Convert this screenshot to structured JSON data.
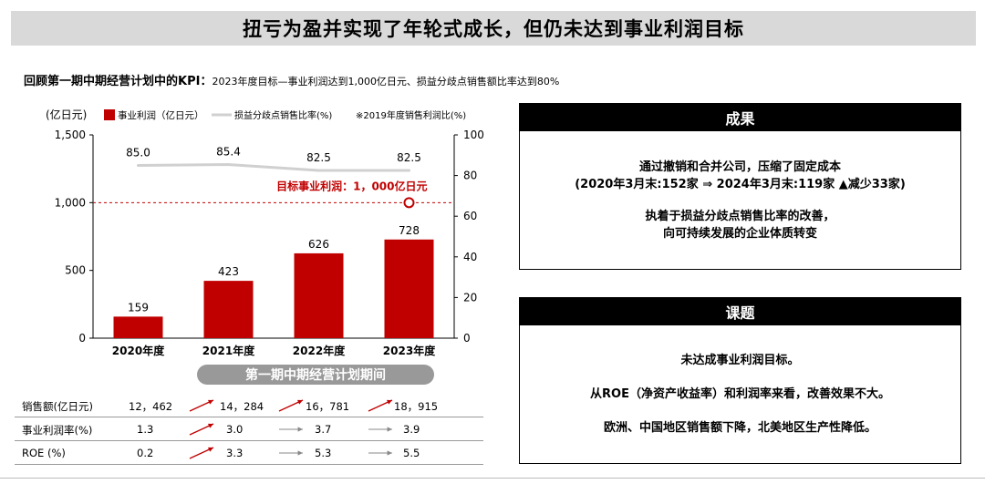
{
  "title": "扭亏为盈并实现了年轮式成长，但仍未达到事业利润目标",
  "subtitle": {
    "bold": "回顾第一期中期经营计划中的KPI：",
    "desc": "2023年度目标—事业利润达到1,000亿日元、损益分歧点销售额比率达到80%"
  },
  "chart_data": {
    "type": "bar",
    "categories": [
      "2020年度",
      "2021年度",
      "2022年度",
      "2023年度"
    ],
    "series": [
      {
        "name": "事业利润（亿日元）",
        "type": "bar",
        "axis": "left",
        "values": [
          159,
          423,
          626,
          728
        ],
        "color": "#c00000"
      },
      {
        "name": "损益分歧点销售比率(%)",
        "type": "line",
        "axis": "right",
        "values": [
          85.0,
          85.4,
          82.5,
          82.5
        ],
        "color": "#d0d0d0"
      }
    ],
    "value_labels": [
      "159",
      "423",
      "626",
      "728"
    ],
    "line_labels": [
      "85.0",
      "85.4",
      "82.5",
      "82.5"
    ],
    "ylabel": "(亿日元)",
    "ylim": [
      0,
      1500
    ],
    "y_ticks": [
      0,
      500,
      1000,
      1500
    ],
    "y_tick_labels": [
      "0",
      "500",
      "1,000",
      "1,500"
    ],
    "y2lim": [
      0,
      100
    ],
    "y2_ticks": [
      0,
      20,
      40,
      60,
      80,
      100
    ],
    "target": {
      "value": 1000,
      "label": "目标事业利润：1，000亿日元",
      "color": "#c00000"
    },
    "legend_note": "※2019年度销售利润比(%)",
    "period_label": "第一期中期经营计划期间",
    "legend_position": "top",
    "grid": false
  },
  "table": {
    "rows": [
      {
        "label": "销售额(亿日元)",
        "values": [
          "12，462",
          "14，284",
          "16，781",
          "18，915"
        ],
        "arrows": [
          "up",
          "up",
          "up"
        ]
      },
      {
        "label": "事业利润率(%)",
        "values": [
          "1.3",
          "3.0",
          "3.7",
          "3.9"
        ],
        "arrows": [
          "up",
          "flat",
          "flat"
        ]
      },
      {
        "label": "ROE (%)",
        "values": [
          "0.2",
          "3.3",
          "5.3",
          "5.5"
        ],
        "arrows": [
          "up",
          "flat",
          "flat"
        ]
      }
    ]
  },
  "results": {
    "header": "成果",
    "lines": [
      "通过撤销和合并公司，压缩了固定成本",
      "(2020年3月末:152家 ⇒ 2024年3月末:119家 ▲减少33家)",
      "执着于损益分歧点销售比率的改善，",
      "向可持续发展的企业体质转变"
    ]
  },
  "issues": {
    "header": "课题",
    "lines": [
      "未达成事业利润目标。",
      "从ROE（净资产收益率）和利润率来看，改善效果不大。",
      "欧洲、中国地区销售额下降，北美地区生产性降低。"
    ]
  },
  "colors": {
    "accent": "#c00000",
    "arrow": "#c00000",
    "flat_arrow": "#888888",
    "title_bg": "#d9d9d9",
    "pill": "#999999"
  }
}
